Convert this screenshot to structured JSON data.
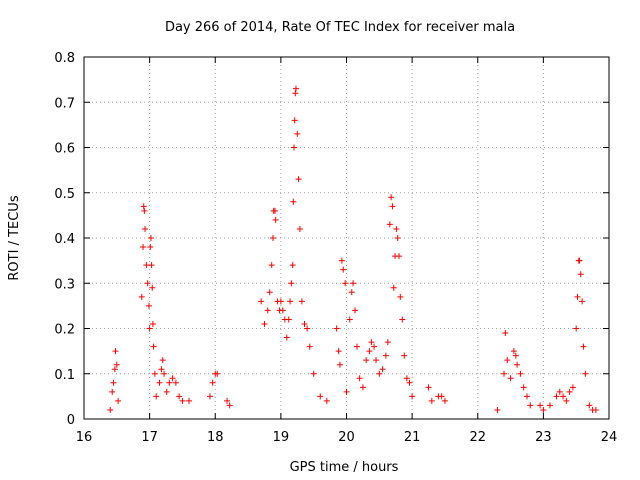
{
  "chart_data": {
    "type": "scatter",
    "title": "Day 266 of 2014, Rate Of TEC Index for receiver mala",
    "xlabel": "GPS time / hours",
    "ylabel": "ROTI / TECUs",
    "xlim": [
      16,
      24
    ],
    "ylim": [
      0,
      0.8
    ],
    "x_ticks": [
      16,
      17,
      18,
      19,
      20,
      21,
      22,
      23,
      24
    ],
    "x_tick_labels": [
      "16",
      "17",
      "18",
      "19",
      "20",
      "21",
      "22",
      "23",
      "24"
    ],
    "y_ticks": [
      0,
      0.1,
      0.2,
      0.3,
      0.4,
      0.5,
      0.6,
      0.7,
      0.8
    ],
    "y_tick_labels": [
      "0",
      "0.1",
      "0.2",
      "0.3",
      "0.4",
      "0.5",
      "0.6",
      "0.7",
      "0.8"
    ],
    "grid": true,
    "marker": "+",
    "marker_color": "#ff0000",
    "series": [
      {
        "name": "ROTI",
        "points": [
          [
            16.4,
            0.02
          ],
          [
            16.43,
            0.06
          ],
          [
            16.45,
            0.08
          ],
          [
            16.47,
            0.11
          ],
          [
            16.48,
            0.15
          ],
          [
            16.5,
            0.12
          ],
          [
            16.52,
            0.04
          ],
          [
            16.88,
            0.27
          ],
          [
            16.9,
            0.38
          ],
          [
            16.91,
            0.47
          ],
          [
            16.92,
            0.46
          ],
          [
            16.93,
            0.42
          ],
          [
            16.95,
            0.34
          ],
          [
            16.97,
            0.3
          ],
          [
            16.99,
            0.25
          ],
          [
            17.0,
            0.2
          ],
          [
            17.01,
            0.38
          ],
          [
            17.02,
            0.4
          ],
          [
            17.03,
            0.34
          ],
          [
            17.04,
            0.29
          ],
          [
            17.05,
            0.21
          ],
          [
            17.06,
            0.16
          ],
          [
            17.08,
            0.1
          ],
          [
            17.1,
            0.05
          ],
          [
            17.15,
            0.08
          ],
          [
            17.18,
            0.11
          ],
          [
            17.2,
            0.13
          ],
          [
            17.22,
            0.1
          ],
          [
            17.26,
            0.06
          ],
          [
            17.3,
            0.08
          ],
          [
            17.35,
            0.09
          ],
          [
            17.4,
            0.08
          ],
          [
            17.45,
            0.05
          ],
          [
            17.5,
            0.04
          ],
          [
            17.6,
            0.04
          ],
          [
            17.92,
            0.05
          ],
          [
            17.96,
            0.08
          ],
          [
            18.0,
            0.1
          ],
          [
            18.03,
            0.1
          ],
          [
            18.18,
            0.04
          ],
          [
            18.22,
            0.03
          ],
          [
            18.7,
            0.26
          ],
          [
            18.75,
            0.21
          ],
          [
            18.8,
            0.24
          ],
          [
            18.83,
            0.28
          ],
          [
            18.86,
            0.34
          ],
          [
            18.88,
            0.4
          ],
          [
            18.89,
            0.46
          ],
          [
            18.91,
            0.46
          ],
          [
            18.92,
            0.44
          ],
          [
            18.95,
            0.26
          ],
          [
            18.98,
            0.24
          ],
          [
            19.0,
            0.26
          ],
          [
            19.03,
            0.24
          ],
          [
            19.06,
            0.22
          ],
          [
            19.09,
            0.18
          ],
          [
            19.12,
            0.22
          ],
          [
            19.14,
            0.26
          ],
          [
            19.16,
            0.3
          ],
          [
            19.18,
            0.34
          ],
          [
            19.19,
            0.48
          ],
          [
            19.2,
            0.6
          ],
          [
            19.21,
            0.66
          ],
          [
            19.22,
            0.72
          ],
          [
            19.23,
            0.73
          ],
          [
            19.25,
            0.63
          ],
          [
            19.27,
            0.53
          ],
          [
            19.29,
            0.42
          ],
          [
            19.32,
            0.26
          ],
          [
            19.36,
            0.21
          ],
          [
            19.4,
            0.2
          ],
          [
            19.44,
            0.16
          ],
          [
            19.5,
            0.1
          ],
          [
            19.6,
            0.05
          ],
          [
            19.7,
            0.04
          ],
          [
            19.85,
            0.2
          ],
          [
            19.88,
            0.15
          ],
          [
            19.9,
            0.12
          ],
          [
            19.93,
            0.35
          ],
          [
            19.95,
            0.33
          ],
          [
            19.98,
            0.3
          ],
          [
            20.0,
            0.06
          ],
          [
            20.05,
            0.22
          ],
          [
            20.08,
            0.28
          ],
          [
            20.1,
            0.3
          ],
          [
            20.13,
            0.24
          ],
          [
            20.16,
            0.16
          ],
          [
            20.2,
            0.09
          ],
          [
            20.25,
            0.07
          ],
          [
            20.3,
            0.13
          ],
          [
            20.35,
            0.15
          ],
          [
            20.38,
            0.17
          ],
          [
            20.42,
            0.16
          ],
          [
            20.45,
            0.13
          ],
          [
            20.5,
            0.1
          ],
          [
            20.55,
            0.11
          ],
          [
            20.6,
            0.14
          ],
          [
            20.63,
            0.17
          ],
          [
            20.66,
            0.43
          ],
          [
            20.68,
            0.49
          ],
          [
            20.7,
            0.47
          ],
          [
            20.72,
            0.29
          ],
          [
            20.74,
            0.36
          ],
          [
            20.76,
            0.42
          ],
          [
            20.78,
            0.4
          ],
          [
            20.8,
            0.36
          ],
          [
            20.82,
            0.27
          ],
          [
            20.85,
            0.22
          ],
          [
            20.88,
            0.14
          ],
          [
            20.92,
            0.09
          ],
          [
            20.96,
            0.08
          ],
          [
            21.0,
            0.05
          ],
          [
            21.25,
            0.07
          ],
          [
            21.3,
            0.04
          ],
          [
            21.4,
            0.05
          ],
          [
            21.45,
            0.05
          ],
          [
            21.5,
            0.04
          ],
          [
            22.3,
            0.02
          ],
          [
            22.4,
            0.1
          ],
          [
            22.42,
            0.19
          ],
          [
            22.45,
            0.13
          ],
          [
            22.5,
            0.09
          ],
          [
            22.55,
            0.15
          ],
          [
            22.58,
            0.14
          ],
          [
            22.6,
            0.12
          ],
          [
            22.65,
            0.1
          ],
          [
            22.7,
            0.07
          ],
          [
            22.75,
            0.05
          ],
          [
            22.8,
            0.03
          ],
          [
            22.95,
            0.03
          ],
          [
            23.0,
            0.02
          ],
          [
            23.1,
            0.03
          ],
          [
            23.2,
            0.05
          ],
          [
            23.25,
            0.06
          ],
          [
            23.3,
            0.05
          ],
          [
            23.35,
            0.04
          ],
          [
            23.4,
            0.06
          ],
          [
            23.45,
            0.07
          ],
          [
            23.5,
            0.2
          ],
          [
            23.52,
            0.27
          ],
          [
            23.54,
            0.35
          ],
          [
            23.55,
            0.35
          ],
          [
            23.57,
            0.32
          ],
          [
            23.59,
            0.26
          ],
          [
            23.61,
            0.16
          ],
          [
            23.64,
            0.1
          ],
          [
            23.7,
            0.03
          ],
          [
            23.75,
            0.02
          ],
          [
            23.8,
            0.02
          ]
        ]
      }
    ]
  }
}
